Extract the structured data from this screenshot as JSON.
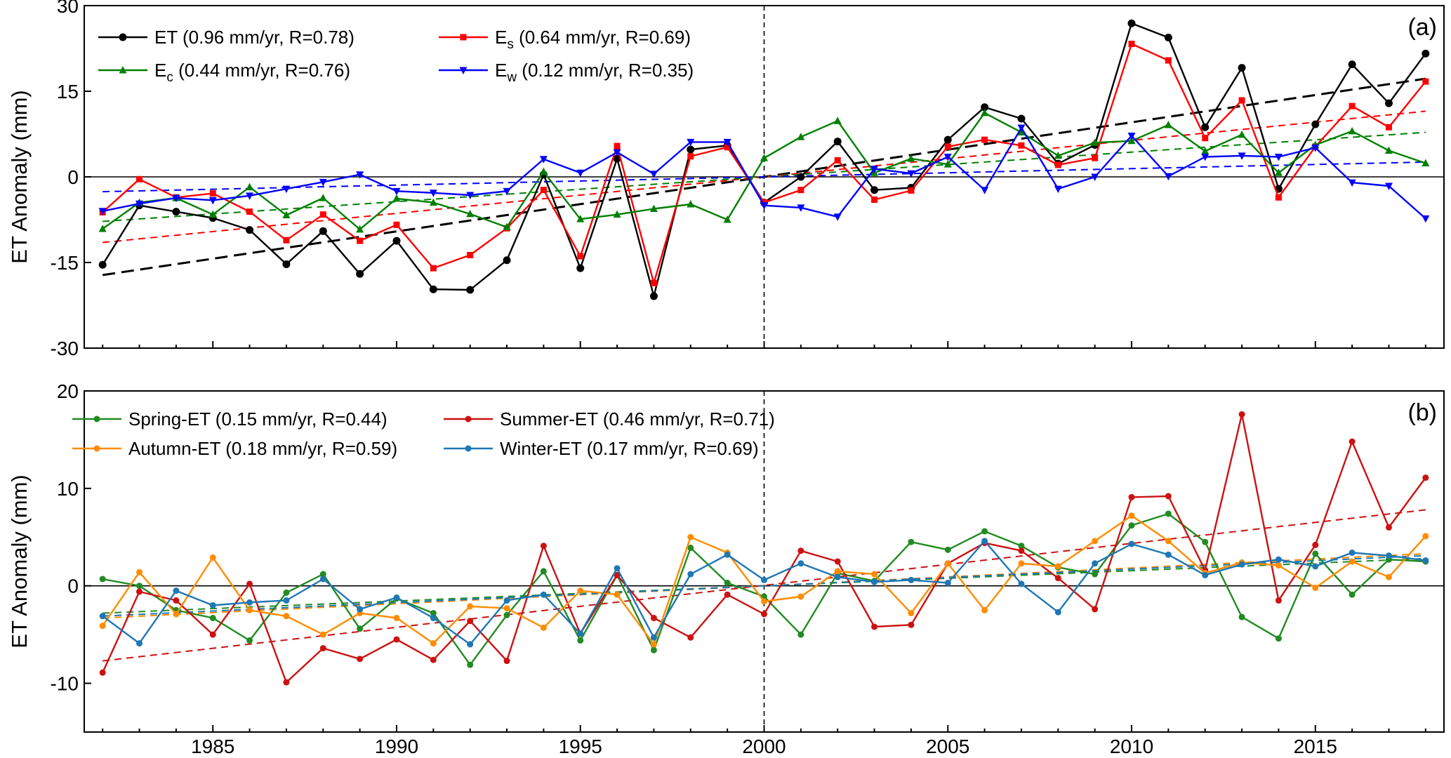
{
  "chart_data": [
    {
      "type": "line",
      "panel_label": "(a)",
      "ylabel": "ET Anomaly (mm)",
      "xlim": [
        1981.5,
        2018.5
      ],
      "ylim": [
        -30,
        30
      ],
      "yticks": [
        -30,
        -15,
        0,
        15,
        30
      ],
      "xticks": [
        1985,
        1990,
        1995,
        2000,
        2005,
        2010,
        2015
      ],
      "vline_x": 2000,
      "legend_position": "top-left",
      "x": [
        1982,
        1983,
        1984,
        1985,
        1986,
        1987,
        1988,
        1989,
        1990,
        1991,
        1992,
        1993,
        1994,
        1995,
        1996,
        1997,
        1998,
        1999,
        2000,
        2001,
        2002,
        2003,
        2004,
        2005,
        2006,
        2007,
        2008,
        2009,
        2010,
        2011,
        2012,
        2013,
        2014,
        2015,
        2016,
        2017,
        2018
      ],
      "series": [
        {
          "name": "ET (0.96 mm/yr, R=0.78)",
          "label_main": "ET",
          "label_sub": "",
          "label_rest": " (0.96 mm/yr, R=0.78)",
          "color": "#000000",
          "marker": "circle",
          "values": [
            -15.4,
            -5.0,
            -6.1,
            -7.2,
            -9.3,
            -15.3,
            -9.5,
            -17.0,
            -11.2,
            -19.7,
            -19.8,
            -14.6,
            0.4,
            -16.0,
            3.2,
            -20.9,
            4.8,
            5.5,
            -4.5,
            0.0,
            6.2,
            -2.3,
            -1.9,
            6.5,
            12.2,
            10.2,
            2.3,
            5.6,
            26.9,
            24.4,
            8.7,
            19.1,
            -2.1,
            9.2,
            19.7,
            12.9,
            21.6
          ],
          "trend": [
            -17.2,
            17.2
          ],
          "trend_dash": "long"
        },
        {
          "name": "Es (0.64 mm/yr, R=0.69)",
          "label_main": "E",
          "label_sub": "s",
          "label_rest": " (0.64 mm/yr, R=0.69)",
          "color": "#ff0000",
          "marker": "square",
          "values": [
            -6.2,
            -0.4,
            -3.6,
            -2.9,
            -6.1,
            -11.1,
            -6.6,
            -11.2,
            -8.4,
            -16.0,
            -13.7,
            -9.0,
            -2.3,
            -13.9,
            5.4,
            -18.6,
            3.6,
            5.2,
            -4.5,
            -2.3,
            2.9,
            -4.0,
            -2.4,
            5.3,
            6.5,
            5.5,
            2.1,
            3.3,
            23.3,
            20.4,
            6.8,
            13.4,
            -3.6,
            5.3,
            12.4,
            8.7,
            16.7
          ],
          "trend": [
            -11.5,
            11.5
          ],
          "trend_dash": "short"
        },
        {
          "name": "Ec (0.44 mm/yr, R=0.76)",
          "label_main": "E",
          "label_sub": "c",
          "label_rest": " (0.44 mm/yr, R=0.76)",
          "color": "#008000",
          "marker": "triangle-up",
          "values": [
            -9.1,
            -4.5,
            -3.7,
            -6.6,
            -1.8,
            -6.7,
            -3.7,
            -9.2,
            -3.8,
            -4.5,
            -6.5,
            -8.8,
            0.9,
            -7.4,
            -6.6,
            -5.6,
            -4.8,
            -7.5,
            3.3,
            7.0,
            9.8,
            0.7,
            3.2,
            2.2,
            11.2,
            7.8,
            3.7,
            6.0,
            6.3,
            9.1,
            4.5,
            7.4,
            0.7,
            5.6,
            8.0,
            4.6,
            2.4
          ],
          "trend": [
            -7.8,
            7.8
          ],
          "trend_dash": "short"
        },
        {
          "name": "Ew (0.12 mm/yr, R=0.35)",
          "label_main": "E",
          "label_sub": "w",
          "label_rest": " (0.12 mm/yr, R=0.35)",
          "color": "#0000ff",
          "marker": "triangle-down",
          "values": [
            -6.0,
            -4.7,
            -3.7,
            -4.1,
            -3.3,
            -2.1,
            -0.9,
            0.4,
            -2.5,
            -2.8,
            -3.2,
            -2.5,
            3.1,
            0.7,
            4.3,
            0.5,
            6.1,
            6.1,
            -5.0,
            -5.4,
            -7.0,
            1.4,
            0.6,
            3.5,
            -2.3,
            8.6,
            -2.1,
            0.0,
            7.2,
            0.1,
            3.5,
            3.7,
            3.5,
            5.1,
            -1.0,
            -1.6,
            -7.3
          ],
          "trend": [
            -2.6,
            2.6
          ],
          "trend_dash": "short"
        }
      ]
    },
    {
      "type": "line",
      "panel_label": "(b)",
      "ylabel": "ET Anomaly (mm)",
      "xlim": [
        1981.5,
        2018.5
      ],
      "ylim": [
        -15,
        20
      ],
      "yticks": [
        -10,
        0,
        10,
        20
      ],
      "xticks": [
        1985,
        1990,
        1995,
        2000,
        2005,
        2010,
        2015
      ],
      "vline_x": 2000,
      "legend_position": "top-left",
      "x": [
        1982,
        1983,
        1984,
        1985,
        1986,
        1987,
        1988,
        1989,
        1990,
        1991,
        1992,
        1993,
        1994,
        1995,
        1996,
        1997,
        1998,
        1999,
        2000,
        2001,
        2002,
        2003,
        2004,
        2005,
        2006,
        2007,
        2008,
        2009,
        2010,
        2011,
        2012,
        2013,
        2014,
        2015,
        2016,
        2017,
        2018
      ],
      "series": [
        {
          "name": "Spring-ET (0.15 mm/yr, R=0.44)",
          "label_main": "Spring-ET",
          "label_sub": "",
          "label_rest": " (0.15 mm/yr, R=0.44)",
          "color": "#228b22",
          "marker": "circle",
          "values": [
            0.7,
            0.0,
            -2.5,
            -3.3,
            -5.6,
            -0.7,
            1.2,
            -4.4,
            -1.3,
            -2.8,
            -8.1,
            -3.0,
            1.5,
            -5.6,
            1.1,
            -6.6,
            3.9,
            0.3,
            -1.1,
            -5.0,
            1.3,
            0.5,
            4.5,
            3.7,
            5.6,
            4.1,
            1.9,
            1.2,
            6.2,
            7.4,
            4.5,
            -3.2,
            -5.4,
            3.3,
            -0.9,
            2.7,
            2.5
          ],
          "trend": [
            -2.8,
            2.8
          ],
          "trend_dash": "short"
        },
        {
          "name": "Summer-ET (0.46 mm/yr, R=0.71)",
          "label_main": "Summer-ET",
          "label_sub": "",
          "label_rest": " (0.46 mm/yr, R=0.71)",
          "color": "#cc1111",
          "marker": "circle",
          "values": [
            -8.9,
            -0.6,
            -1.5,
            -5.0,
            0.2,
            -9.9,
            -6.4,
            -7.5,
            -5.5,
            -7.6,
            -3.6,
            -7.7,
            4.1,
            -4.9,
            1.1,
            -3.3,
            -5.3,
            -0.9,
            -2.9,
            3.6,
            2.5,
            -4.2,
            -4.0,
            2.3,
            4.4,
            3.6,
            0.8,
            -2.4,
            9.1,
            9.2,
            1.6,
            17.6,
            -1.5,
            4.2,
            14.8,
            6.0,
            11.1
          ],
          "trend": [
            -7.7,
            7.8
          ],
          "trend_dash": "short"
        },
        {
          "name": "Autumn-ET (0.18 mm/yr, R=0.59)",
          "label_main": "Autumn-ET",
          "label_sub": "",
          "label_rest": " (0.18 mm/yr, R=0.59)",
          "color": "#ff8c00",
          "marker": "circle",
          "values": [
            -4.1,
            1.4,
            -2.9,
            2.9,
            -2.5,
            -3.1,
            -5.0,
            -2.8,
            -3.3,
            -5.9,
            -2.1,
            -2.3,
            -4.3,
            -0.5,
            -0.9,
            -6.0,
            5.0,
            3.4,
            -1.6,
            -1.1,
            1.5,
            1.2,
            -2.8,
            2.3,
            -2.5,
            2.3,
            2.0,
            4.6,
            7.2,
            4.6,
            1.3,
            2.4,
            2.1,
            -0.2,
            2.5,
            0.9,
            5.1
          ],
          "trend": [
            -3.3,
            3.3
          ],
          "trend_dash": "short"
        },
        {
          "name": "Winter-ET (0.17 mm/yr, R=0.69)",
          "label_main": "Winter-ET",
          "label_sub": "",
          "label_rest": " (0.17 mm/yr, R=0.69)",
          "color": "#1f77b4",
          "marker": "circle",
          "values": [
            -3.1,
            -5.9,
            -0.5,
            -2.0,
            -1.7,
            -1.5,
            0.7,
            -2.4,
            -1.2,
            -3.3,
            -6.0,
            -1.5,
            -0.9,
            -4.9,
            1.8,
            -5.3,
            1.2,
            3.2,
            0.6,
            2.3,
            0.9,
            0.4,
            0.6,
            0.3,
            4.6,
            0.2,
            -2.7,
            2.3,
            4.3,
            3.2,
            1.1,
            2.2,
            2.7,
            2.0,
            3.4,
            3.1,
            2.6
          ],
          "trend": [
            -3.1,
            3.1
          ],
          "trend_dash": "short"
        }
      ]
    }
  ]
}
